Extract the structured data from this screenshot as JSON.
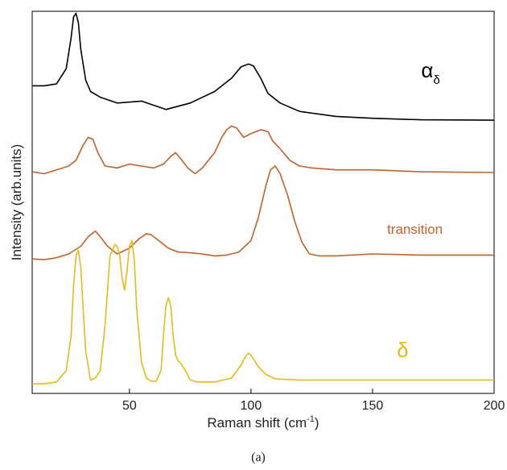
{
  "chart_data": {
    "type": "line",
    "xlabel": "Raman shift (cm",
    "xlabel_sup": "-1",
    "xlabel_end": ")",
    "ylabel": "Intensity (arb.units)",
    "panel_label": "(a)",
    "xlim": [
      10,
      200
    ],
    "ylim": [
      0,
      1
    ],
    "xticks": [
      50,
      100,
      150,
      200
    ],
    "grid": false,
    "series": [
      {
        "name": "α",
        "subscript": "δ",
        "color": "#000000",
        "x": [
          10,
          15,
          20,
          24,
          26,
          27,
          28,
          29,
          30,
          32,
          34,
          38,
          45,
          55,
          65,
          75,
          85,
          92,
          96,
          99,
          101,
          104,
          107,
          112,
          120,
          135,
          150,
          170,
          200
        ],
        "y": [
          0.805,
          0.805,
          0.81,
          0.85,
          0.93,
          0.985,
          0.995,
          0.97,
          0.9,
          0.82,
          0.79,
          0.775,
          0.76,
          0.765,
          0.743,
          0.76,
          0.79,
          0.825,
          0.855,
          0.862,
          0.857,
          0.825,
          0.785,
          0.76,
          0.738,
          0.725,
          0.72,
          0.716,
          0.715
        ]
      },
      {
        "name": "",
        "color": "#c0622b",
        "x": [
          10,
          15,
          20,
          25,
          28,
          31,
          33,
          35,
          37,
          40,
          45,
          50,
          55,
          60,
          64,
          67,
          69,
          71,
          74,
          77,
          80,
          85,
          88,
          90,
          92,
          94,
          97,
          100,
          104,
          107,
          109,
          112,
          116,
          120,
          125,
          135,
          150,
          170,
          200
        ],
        "y": [
          0.58,
          0.575,
          0.585,
          0.595,
          0.61,
          0.65,
          0.67,
          0.665,
          0.63,
          0.595,
          0.59,
          0.6,
          0.595,
          0.59,
          0.6,
          0.62,
          0.63,
          0.615,
          0.59,
          0.575,
          0.59,
          0.63,
          0.67,
          0.69,
          0.7,
          0.695,
          0.67,
          0.68,
          0.69,
          0.685,
          0.66,
          0.64,
          0.61,
          0.595,
          0.59,
          0.585,
          0.585,
          0.58,
          0.578
        ]
      },
      {
        "name": "transition",
        "color": "#c0622b",
        "x": [
          10,
          15,
          20,
          25,
          30,
          33,
          36,
          38,
          41,
          45,
          50,
          54,
          57,
          59,
          62,
          66,
          70,
          75,
          80,
          85,
          90,
          95,
          100,
          103,
          106,
          108,
          110,
          112,
          115,
          118,
          121,
          124,
          128,
          135,
          150,
          170,
          200
        ],
        "y": [
          0.352,
          0.35,
          0.355,
          0.365,
          0.385,
          0.41,
          0.425,
          0.41,
          0.385,
          0.365,
          0.38,
          0.405,
          0.418,
          0.415,
          0.4,
          0.38,
          0.37,
          0.368,
          0.365,
          0.36,
          0.362,
          0.37,
          0.4,
          0.46,
          0.54,
          0.585,
          0.595,
          0.575,
          0.52,
          0.45,
          0.395,
          0.365,
          0.36,
          0.36,
          0.365,
          0.362,
          0.362
        ]
      },
      {
        "name": "δ",
        "color": "#e8b820",
        "x": [
          10,
          15,
          20,
          24,
          26,
          27,
          28,
          29,
          30,
          31,
          32,
          34,
          36,
          38,
          40,
          42,
          44,
          45,
          46,
          47,
          48,
          49,
          50,
          51,
          52,
          53,
          55,
          57,
          59,
          61,
          63,
          64,
          65,
          66,
          67,
          68,
          69,
          70,
          71,
          72,
          73,
          75,
          78,
          85,
          92,
          96,
          98,
          99,
          100,
          101,
          103,
          106,
          110,
          120,
          140,
          170,
          200
        ],
        "y": [
          0.025,
          0.025,
          0.03,
          0.06,
          0.15,
          0.28,
          0.36,
          0.375,
          0.33,
          0.22,
          0.11,
          0.035,
          0.04,
          0.06,
          0.18,
          0.36,
          0.39,
          0.385,
          0.36,
          0.3,
          0.27,
          0.32,
          0.385,
          0.4,
          0.35,
          0.22,
          0.08,
          0.04,
          0.032,
          0.032,
          0.06,
          0.15,
          0.23,
          0.25,
          0.23,
          0.15,
          0.1,
          0.085,
          0.08,
          0.07,
          0.06,
          0.035,
          0.03,
          0.03,
          0.04,
          0.075,
          0.1,
          0.105,
          0.1,
          0.09,
          0.07,
          0.05,
          0.038,
          0.035,
          0.035,
          0.035,
          0.035
        ]
      }
    ]
  }
}
